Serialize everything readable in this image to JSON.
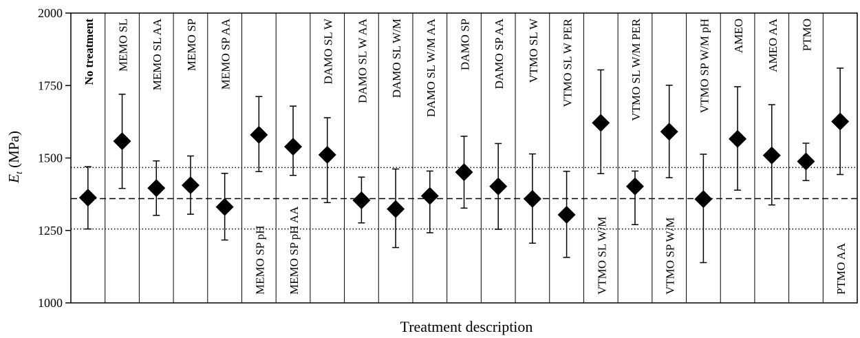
{
  "chart_data": {
    "type": "scatter",
    "title": "",
    "xlabel": "Treatment description",
    "ylabel_main": "E",
    "ylabel_sub": "t",
    "ylabel_unit": " (MPa)",
    "ylim": [
      1000,
      2000
    ],
    "yticks": [
      1000,
      1250,
      1500,
      1750,
      2000
    ],
    "grid": false,
    "reference_lines": {
      "mean": 1360,
      "upper": 1467,
      "lower": 1255
    },
    "categories": [
      "No treatment",
      "MEMO SL",
      "MEMO SL AA",
      "MEMO SP",
      "MEMO SP AA",
      "MEMO SP pH",
      "MEMO SP pH AA",
      "DAMO SL W",
      "DAMO SL W AA",
      "DAMO SL W/M",
      "DAMO SL W/M  AA",
      "DAMO SP",
      "DAMO SP AA",
      "VTMO SL W",
      "VTMO SL W PER",
      "VTMO SL W/M",
      "VTMO SL  W/M PER",
      "VTMO SP W/M",
      "VTMO SP W/M pH",
      "AMEO",
      "AMEO AA",
      "PTMO",
      "PTMO AA"
    ],
    "label_position": [
      "top",
      "top",
      "top",
      "top",
      "top",
      "bottom",
      "bottom",
      "top",
      "top",
      "top",
      "top",
      "top",
      "top",
      "top",
      "top",
      "bottom",
      "top",
      "bottom",
      "top",
      "top",
      "top",
      "top",
      "bottom"
    ],
    "label_bold": [
      true,
      false,
      false,
      false,
      false,
      false,
      false,
      false,
      false,
      false,
      false,
      false,
      false,
      false,
      false,
      false,
      false,
      false,
      false,
      false,
      false,
      false,
      false
    ],
    "values": [
      1363,
      1558,
      1396,
      1406,
      1331,
      1580,
      1539,
      1511,
      1354,
      1324,
      1369,
      1451,
      1402,
      1359,
      1304,
      1621,
      1402,
      1591,
      1358,
      1566,
      1509,
      1488,
      1626
    ],
    "error_low": [
      1255,
      1395,
      1302,
      1306,
      1217,
      1453,
      1440,
      1346,
      1276,
      1191,
      1242,
      1327,
      1254,
      1206,
      1157,
      1446,
      1270,
      1432,
      1139,
      1389,
      1338,
      1422,
      1443
    ],
    "error_high": [
      1470,
      1720,
      1490,
      1507,
      1447,
      1712,
      1679,
      1639,
      1434,
      1462,
      1455,
      1575,
      1550,
      1514,
      1454,
      1804,
      1455,
      1751,
      1513,
      1746,
      1684,
      1551,
      1810
    ]
  }
}
